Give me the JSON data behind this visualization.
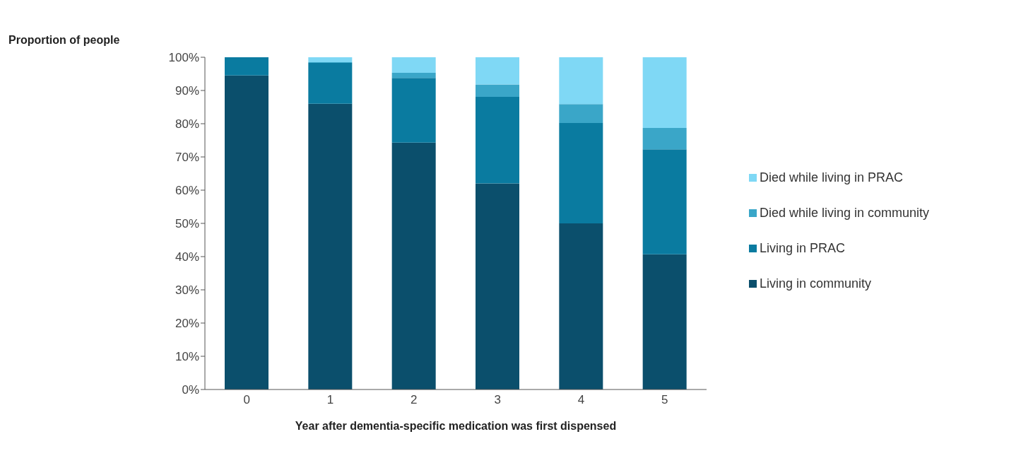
{
  "chart_data": {
    "type": "bar",
    "stacked": true,
    "ylabel": "Proportion of people",
    "xlabel": "Year after dementia-specific  medication  was first dispensed",
    "categories": [
      "0",
      "1",
      "2",
      "3",
      "4",
      "5"
    ],
    "series": [
      {
        "name": "Living in community",
        "color": "#0b4f6c",
        "values": [
          94.5,
          86,
          74.3,
          62,
          50,
          40.7
        ]
      },
      {
        "name": "Living in PRAC",
        "color": "#0a7ba0",
        "values": [
          5.5,
          12.3,
          19.5,
          26.1,
          30.2,
          31.6
        ]
      },
      {
        "name": "Died while living in community",
        "color": "#3aa6c8",
        "values": [
          0,
          0.2,
          1.5,
          3.7,
          5.7,
          6.4
        ]
      },
      {
        "name": "Died while living in PRAC",
        "color": "#7fd8f5",
        "values": [
          0,
          1.5,
          4.7,
          8.2,
          14.1,
          21.3
        ]
      }
    ],
    "ylim": [
      0,
      100
    ],
    "yticks": [
      {
        "value": 0,
        "label": "0%"
      },
      {
        "value": 10,
        "label": "10%"
      },
      {
        "value": 20,
        "label": "20%"
      },
      {
        "value": 30,
        "label": "30%"
      },
      {
        "value": 40,
        "label": "40%"
      },
      {
        "value": 50,
        "label": "50%"
      },
      {
        "value": 60,
        "label": "60%"
      },
      {
        "value": 70,
        "label": "70%"
      },
      {
        "value": 80,
        "label": "80%"
      },
      {
        "value": 90,
        "label": "90%"
      },
      {
        "value": 100,
        "label": "100%"
      }
    ],
    "legend": "right"
  }
}
